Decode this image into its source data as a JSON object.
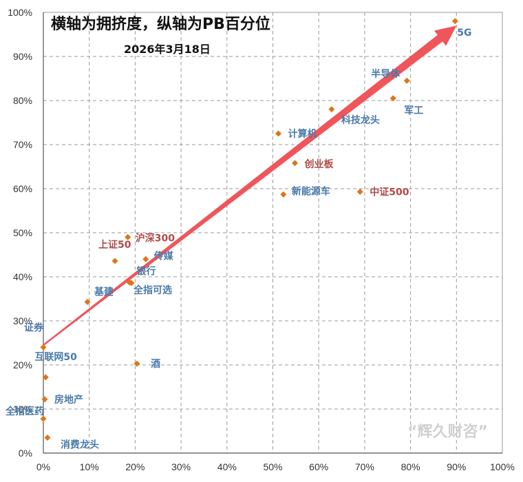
{
  "chart_data": {
    "type": "scatter",
    "title": "横轴为拥挤度，纵轴为PB百分位",
    "subtitle": "2026年3月18日",
    "watermark": "“辉久财咨”",
    "xlim": [
      0,
      100
    ],
    "ylim": [
      0,
      100
    ],
    "x_ticks": [
      "0%",
      "10%",
      "20%",
      "30%",
      "40%",
      "50%",
      "60%",
      "70%",
      "80%",
      "90%",
      "100%"
    ],
    "y_ticks": [
      "0%",
      "10%",
      "20%",
      "30%",
      "40%",
      "50%",
      "60%",
      "70%",
      "80%",
      "90%",
      "100%"
    ],
    "grid": true,
    "marker_color": "#e07418",
    "arrow_color": "#f0555a",
    "arrow": {
      "from": [
        0,
        24.5
      ],
      "to": [
        90,
        97
      ]
    },
    "points": [
      {
        "label": "5G",
        "x": 89.7,
        "y": 98,
        "color": "#4a7aaa"
      },
      {
        "label": "半导体",
        "x": 79.2,
        "y": 84.5,
        "color": "#4a7aaa"
      },
      {
        "label": "军工",
        "x": 76.2,
        "y": 80.5,
        "color": "#4a7aaa"
      },
      {
        "label": "科技龙头",
        "x": 62.8,
        "y": 78,
        "color": "#4a7aaa"
      },
      {
        "label": "计算机",
        "x": 51.2,
        "y": 72.5,
        "color": "#4a7aaa"
      },
      {
        "label": "创业板",
        "x": 54.8,
        "y": 65.8,
        "color": "#b04a48"
      },
      {
        "label": "中证500",
        "x": 69,
        "y": 59.3,
        "color": "#b04a48"
      },
      {
        "label": "新能源车",
        "x": 52.3,
        "y": 58.7,
        "color": "#4a7aaa"
      },
      {
        "label": "沪深300",
        "x": 18.4,
        "y": 49,
        "color": "#b04a48"
      },
      {
        "label": "上证50",
        "x": 15.6,
        "y": 43.6,
        "color": "#b04a48"
      },
      {
        "label": "传媒",
        "x": 22.3,
        "y": 44,
        "color": "#4a7aaa"
      },
      {
        "label": "银行",
        "x": 18.8,
        "y": 38.7,
        "color": "#4a7aaa"
      },
      {
        "label": "全指可选",
        "x": 19.2,
        "y": 38.6,
        "color": "#4a7aaa"
      },
      {
        "label": "基建",
        "x": 9.6,
        "y": 34.3,
        "color": "#4a7aaa"
      },
      {
        "label": "证券",
        "x": 0,
        "y": 24,
        "color": "#4a7aaa"
      },
      {
        "label": "互联网50",
        "x": 0.5,
        "y": 17.2,
        "color": "#4a7aaa"
      },
      {
        "label": "酒",
        "x": 20.4,
        "y": 20.3,
        "color": "#4a7aaa"
      },
      {
        "label": "房地产",
        "x": 0.3,
        "y": 12.2,
        "color": "#4a7aaa"
      },
      {
        "label": "全指医药",
        "x": 0,
        "y": 7.8,
        "color": "#4a7aaa"
      },
      {
        "label": "消费龙头",
        "x": 0.9,
        "y": 3.5,
        "color": "#4a7aaa"
      }
    ]
  }
}
